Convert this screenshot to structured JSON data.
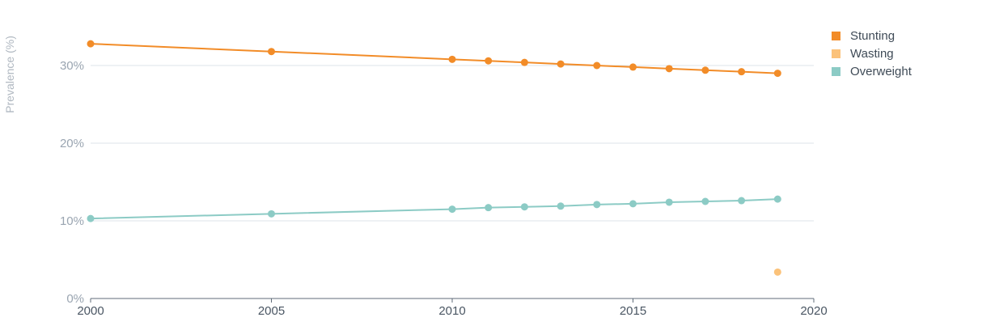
{
  "chart_data": {
    "type": "line",
    "title": "",
    "ylabel": "Prevalence (%)",
    "xlabel": "",
    "xlim": [
      2000,
      2020
    ],
    "ylim": [
      0,
      30
    ],
    "x_ticks": [
      2000,
      2005,
      2010,
      2015,
      2020
    ],
    "x_tick_labels": [
      "2000",
      "2005",
      "2010",
      "2015",
      "2020"
    ],
    "y_ticks": [
      0,
      10,
      20,
      30
    ],
    "y_tick_labels": [
      "0%",
      "10%",
      "20%",
      "30%"
    ],
    "grid": true,
    "legend_position": "top-right",
    "series": [
      {
        "name": "Stunting",
        "color": "#f28c28",
        "x": [
          2000,
          2005,
          2010,
          2011,
          2012,
          2013,
          2014,
          2015,
          2016,
          2017,
          2018,
          2019
        ],
        "values": [
          32.8,
          31.8,
          30.8,
          30.6,
          30.4,
          30.2,
          30.0,
          29.8,
          29.6,
          29.4,
          29.2,
          29.0
        ]
      },
      {
        "name": "Wasting",
        "color": "#fbc27a",
        "x": [
          2019
        ],
        "values": [
          3.4
        ]
      },
      {
        "name": "Overweight",
        "color": "#8ccbc5",
        "x": [
          2000,
          2005,
          2010,
          2011,
          2012,
          2013,
          2014,
          2015,
          2016,
          2017,
          2018,
          2019
        ],
        "values": [
          10.3,
          10.9,
          11.5,
          11.7,
          11.8,
          11.9,
          12.1,
          12.2,
          12.4,
          12.5,
          12.6,
          12.8
        ]
      }
    ]
  }
}
